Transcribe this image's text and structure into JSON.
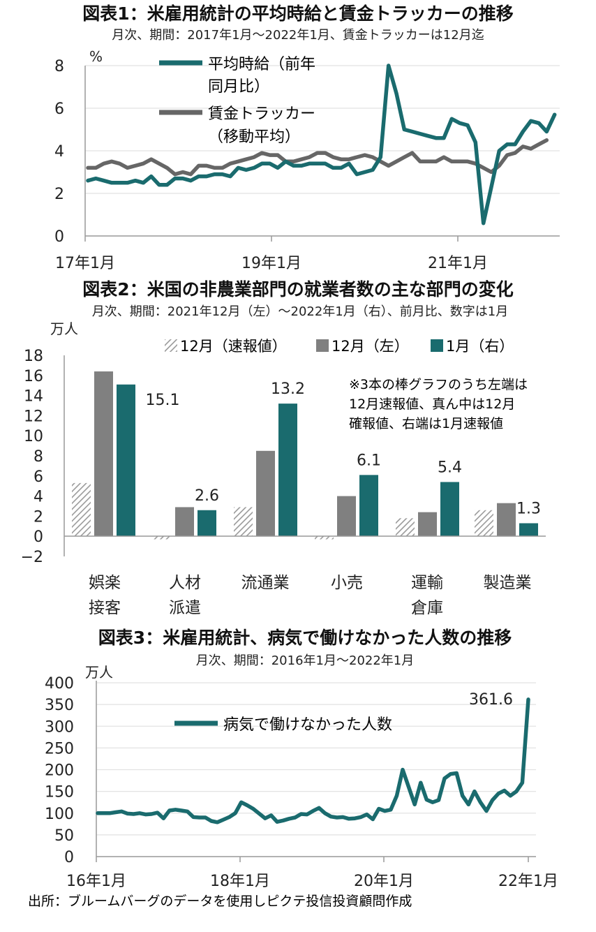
{
  "chart_data": [
    {
      "type": "line",
      "title": "図表1：米雇用統計の平均時給と賃金トラッカーの推移",
      "subtitle": "月次、期間：2017年1月～2022年1月、賃金トラッカーは12月迄",
      "ylabel": "%",
      "ylim": [
        0,
        8
      ],
      "yticks": [
        "0",
        "2",
        "4",
        "6",
        "8"
      ],
      "xtick_labels": [
        "17年1月",
        "19年1月",
        "21年1月"
      ],
      "grid": true,
      "legend_placement": "top-left",
      "series": [
        {
          "name": "平均時給（前年同月比）",
          "legend_lines": [
            "平均時給（前年",
            "同月比）"
          ],
          "color": "#1a6b6e",
          "values": [
            2.6,
            2.7,
            2.6,
            2.5,
            2.5,
            2.5,
            2.6,
            2.5,
            2.8,
            2.4,
            2.4,
            2.7,
            2.7,
            2.6,
            2.8,
            2.8,
            2.9,
            2.9,
            2.8,
            3.2,
            3.1,
            3.2,
            3.4,
            3.4,
            3.2,
            3.5,
            3.3,
            3.3,
            3.4,
            3.4,
            3.4,
            3.2,
            3.2,
            3.4,
            2.9,
            3.0,
            3.1,
            3.7,
            8.0,
            6.7,
            5.0,
            4.9,
            4.8,
            4.7,
            4.6,
            4.6,
            5.5,
            5.3,
            5.2,
            4.4,
            0.6,
            2.3,
            4.0,
            4.3,
            4.3,
            4.9,
            5.4,
            5.3,
            4.9,
            5.7
          ]
        },
        {
          "name": "賃金トラッカー（移動平均）",
          "legend_lines": [
            "賃金トラッカー",
            "（移動平均）"
          ],
          "color": "#666666",
          "values": [
            3.2,
            3.2,
            3.4,
            3.5,
            3.4,
            3.2,
            3.3,
            3.4,
            3.6,
            3.4,
            3.2,
            2.9,
            3.0,
            2.9,
            3.3,
            3.3,
            3.2,
            3.2,
            3.4,
            3.5,
            3.6,
            3.7,
            3.9,
            3.8,
            3.8,
            3.5,
            3.5,
            3.6,
            3.7,
            3.9,
            3.9,
            3.7,
            3.6,
            3.6,
            3.7,
            3.8,
            3.7,
            3.5,
            3.3,
            3.5,
            3.7,
            3.9,
            3.5,
            3.5,
            3.5,
            3.7,
            3.5,
            3.5,
            3.5,
            3.4,
            3.2,
            3.0,
            3.3,
            3.8,
            3.9,
            4.2,
            4.1,
            4.3,
            4.5
          ]
        }
      ]
    },
    {
      "type": "bar",
      "title": "図表2：米国の非農業部門の就業者数の主な部門の変化",
      "subtitle": "月次、期間：2021年12月（左）～2022年1月（右）、前月比、数字は1月",
      "ylabel": "万人",
      "ylim": [
        -2,
        18
      ],
      "yticks": [
        "-2",
        "0",
        "2",
        "4",
        "6",
        "8",
        "10",
        "12",
        "14",
        "16",
        "18"
      ],
      "legend_placement": "top",
      "categories": [
        [
          "娯楽",
          "接客"
        ],
        [
          "人材",
          "派遣"
        ],
        [
          "流通業"
        ],
        [
          "小売"
        ],
        [
          "運輸",
          "倉庫"
        ],
        [
          "製造業"
        ]
      ],
      "series": [
        {
          "name": "12月（速報値）",
          "style": "hatched",
          "color": "#aaaaaa",
          "values": [
            5.3,
            -0.3,
            2.9,
            -0.3,
            1.8,
            2.6
          ]
        },
        {
          "name": "12月（左）",
          "color": "#808080",
          "values": [
            16.4,
            2.9,
            8.5,
            4.0,
            2.4,
            3.3
          ]
        },
        {
          "name": "1月（右）",
          "color": "#1a6b6e",
          "values": [
            15.1,
            2.6,
            13.2,
            6.1,
            5.4,
            1.3
          ]
        }
      ],
      "data_labels": [
        "15.1",
        "2.6",
        "13.2",
        "6.1",
        "5.4",
        "1.3"
      ],
      "note_lines": [
        "※3本の棒グラフのうち左端は",
        "12月速報値、真ん中は12月",
        "確報値、右端は1月速報値"
      ]
    },
    {
      "type": "line",
      "title": "図表3：米雇用統計、病気で働けなかった人数の推移",
      "subtitle": "月次、期間：2016年1月～2022年1月",
      "ylabel": "万人",
      "ylim": [
        0,
        400
      ],
      "yticks": [
        "0",
        "50",
        "100",
        "150",
        "200",
        "250",
        "300",
        "350",
        "400"
      ],
      "xtick_labels": [
        "16年1月",
        "18年1月",
        "20年1月",
        "22年1月"
      ],
      "grid": true,
      "legend_placement": "top-center",
      "annotation": "361.6",
      "series": [
        {
          "name": "病気で働けなかった人数",
          "color": "#1a6b6e",
          "values": [
            100,
            100,
            100,
            102,
            104,
            99,
            98,
            100,
            97,
            98,
            101,
            88,
            106,
            108,
            106,
            104,
            91,
            90,
            90,
            82,
            79,
            85,
            91,
            100,
            125,
            118,
            110,
            99,
            88,
            95,
            80,
            83,
            87,
            90,
            98,
            97,
            105,
            112,
            100,
            92,
            90,
            91,
            87,
            88,
            91,
            97,
            86,
            110,
            105,
            108,
            140,
            200,
            160,
            120,
            170,
            131,
            125,
            130,
            180,
            190,
            192,
            140,
            120,
            150,
            125,
            105,
            130,
            145,
            152,
            140,
            150,
            170,
            361.6
          ]
        }
      ]
    }
  ],
  "source": "出所：ブルームバーグのデータを使用しピクテ投信投資顧問作成"
}
